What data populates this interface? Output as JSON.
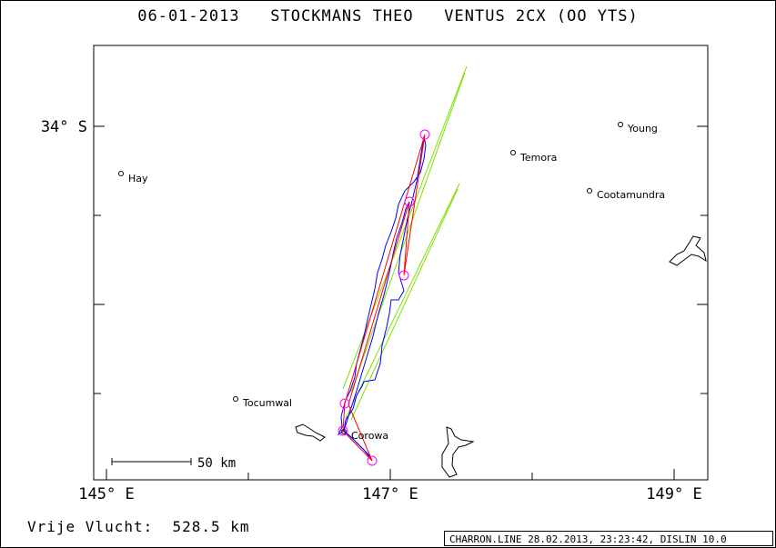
{
  "header": {
    "title": "06-01-2013   STOCKMANS THEO   VENTUS 2CX (OO YTS)"
  },
  "axes": {
    "x_labels": [
      "145° E",
      "147° E",
      "149° E"
    ],
    "y_labels": [
      "34° S"
    ]
  },
  "towns": [
    "Hay",
    "Young",
    "Temora",
    "Cootamundra",
    "Tocumwal",
    "Corowa"
  ],
  "scale": {
    "label": "50 km"
  },
  "summary": {
    "free_flight": "Vrije Vlucht:  528.5 km"
  },
  "footer": {
    "text": "CHARRON.LINE 28.02.2013, 23:23:42, DISLIN 10.0"
  },
  "colors": {
    "track": "#0000ff",
    "task": "#ff0000",
    "sectors": "#80e000",
    "turnpoints": "#ff00ff"
  }
}
